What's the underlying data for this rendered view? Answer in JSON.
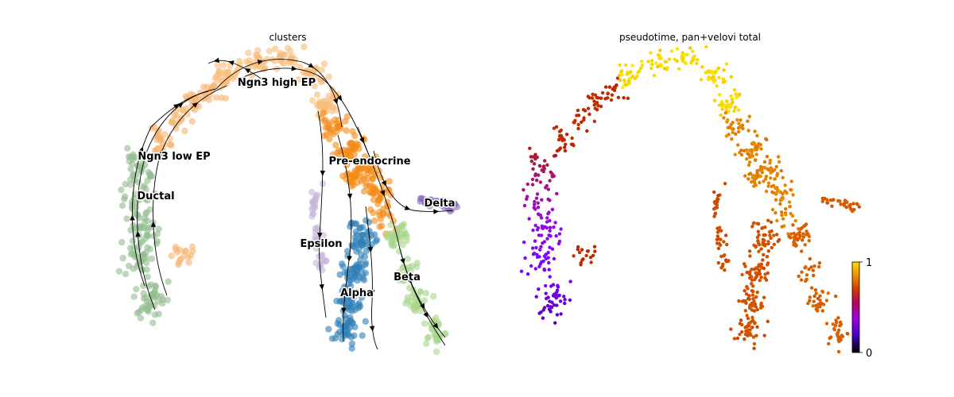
{
  "chart_data": [
    {
      "type": "scatter",
      "title": "clusters",
      "legend": "on data",
      "axes": "off",
      "streamlines": true,
      "colors": {
        "Ngn3 high EP": "#f9bc79",
        "Ngn3 low EP": "#f7b46f",
        "Ductal": "#93bd8f",
        "Pre-endocrine": "#f48b16",
        "Delta": "#8b6bbd",
        "Epsilon": "#c8b6d8",
        "Alpha": "#2f7fb5",
        "Beta": "#a8d58a"
      },
      "labels": [
        {
          "name": "Ngn3 high EP"
        },
        {
          "name": "Ngn3 low EP"
        },
        {
          "name": "Ductal"
        },
        {
          "name": "Pre-endocrine"
        },
        {
          "name": "Delta"
        },
        {
          "name": "Epsilon"
        },
        {
          "name": "Alpha"
        },
        {
          "name": "Beta"
        }
      ]
    },
    {
      "type": "scatter",
      "title": "pseudotime, pan+velovi total",
      "axes": "off",
      "colormap": "gnuplot",
      "colorbar": {
        "min_label": "0",
        "max_label": "1",
        "range": [
          0,
          1
        ]
      },
      "pseudotime_by_region": {
        "Ductal": 0.25,
        "Ngn3 low EP": 0.55,
        "Ngn3 high EP": 0.95,
        "Pre-endocrine": 0.8,
        "Delta": 0.7,
        "Epsilon": 0.66,
        "Alpha": 0.68,
        "Beta": 0.72
      }
    }
  ]
}
